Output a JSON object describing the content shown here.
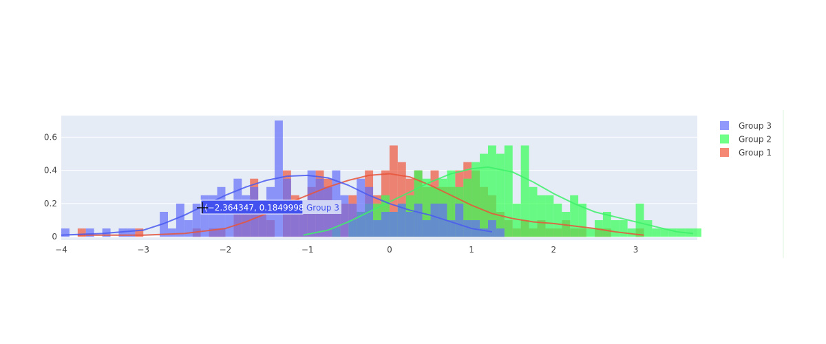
{
  "chart_data": {
    "type": "histogram",
    "subtype": "distplot (histogram + KDE curve)",
    "bin_start": -4.0,
    "bin_width": 0.1,
    "xlim": [
      -4,
      3.75
    ],
    "ylim": [
      -0.02,
      0.73
    ],
    "xticks": [
      -4,
      -3,
      -2,
      -1,
      0,
      1,
      2,
      3
    ],
    "yticks": [
      0,
      0.2,
      0.4,
      0.6
    ],
    "xtick_labels": [
      "−4",
      "−3",
      "−2",
      "−1",
      "0",
      "1",
      "2",
      "3"
    ],
    "ytick_labels": [
      "0",
      "0.2",
      "0.4",
      "0.6"
    ],
    "grid": true,
    "legend_position": "right",
    "plot_bg": "#e5ecf6",
    "series": [
      {
        "name": "Group 1",
        "color": "#ef553b",
        "line_color": "#e8553b",
        "bins_from": -3.8,
        "values": [
          0.05,
          0,
          0,
          0,
          0,
          0,
          0,
          0.05,
          0,
          0,
          0,
          0,
          0,
          0,
          0.05,
          0,
          0.05,
          0.05,
          0,
          0.15,
          0.15,
          0.35,
          0.15,
          0.1,
          0,
          0.4,
          0.25,
          0.15,
          0.3,
          0.4,
          0.35,
          0.2,
          0.2,
          0.25,
          0.15,
          0.4,
          0.25,
          0.4,
          0.55,
          0.45,
          0.35,
          0.4,
          0.3,
          0.4,
          0.3,
          0.3,
          0.4,
          0.45,
          0.4,
          0.3,
          0.25,
          0.15,
          0.1,
          0.05,
          0.1,
          0.05,
          0.1,
          0.05,
          0.05,
          0.1,
          0.05,
          0.05,
          0,
          0.05,
          0.05,
          0,
          0,
          0,
          0.05
        ],
        "kde": {
          "x": [
            -3.8,
            -3,
            -2.5,
            -2,
            -1.75,
            -1.5,
            -1.25,
            -1,
            -0.75,
            -0.5,
            -0.25,
            0,
            0.25,
            0.5,
            0.75,
            1,
            1.25,
            1.5,
            1.75,
            2,
            2.25,
            2.5,
            2.75,
            3,
            3.1
          ],
          "y": [
            0.01,
            0.01,
            0.02,
            0.05,
            0.09,
            0.14,
            0.2,
            0.25,
            0.3,
            0.34,
            0.37,
            0.38,
            0.36,
            0.31,
            0.25,
            0.19,
            0.14,
            0.11,
            0.09,
            0.08,
            0.065,
            0.05,
            0.03,
            0.015,
            0.01
          ]
        }
      },
      {
        "name": "Group 2",
        "color": "#33ff55",
        "line_color": "#3ef06a",
        "bins_from": -0.7,
        "values": [
          0.05,
          0,
          0.1,
          0.15,
          0.2,
          0.2,
          0.25,
          0.15,
          0.2,
          0.25,
          0.4,
          0.35,
          0.3,
          0.35,
          0.4,
          0.3,
          0.35,
          0.45,
          0.5,
          0.55,
          0.5,
          0.55,
          0.2,
          0.55,
          0.3,
          0.25,
          0.25,
          0.2,
          0.15,
          0.25,
          0.2,
          0.05,
          0.1,
          0.15,
          0.1,
          0.1,
          0.05,
          0.2,
          0.1,
          0.05,
          0.05,
          0.05,
          0.05,
          0.05,
          0.05
        ],
        "kde": {
          "x": [
            -1.05,
            -0.75,
            -0.5,
            -0.25,
            0,
            0.25,
            0.5,
            0.75,
            1,
            1.2,
            1.5,
            1.75,
            2,
            2.25,
            2.5,
            2.75,
            3,
            3.25,
            3.5,
            3.7
          ],
          "y": [
            0.01,
            0.04,
            0.09,
            0.15,
            0.21,
            0.27,
            0.33,
            0.38,
            0.41,
            0.42,
            0.39,
            0.33,
            0.26,
            0.2,
            0.15,
            0.12,
            0.09,
            0.06,
            0.03,
            0.02
          ]
        }
      },
      {
        "name": "Group 3",
        "color": "#636efa",
        "line_color": "#4a5af0",
        "bins_from": -4.0,
        "values": [
          0.05,
          0,
          0,
          0.05,
          0,
          0.05,
          0,
          0.05,
          0.05,
          0,
          0,
          0,
          0.15,
          0.05,
          0.2,
          0.1,
          0.2,
          0.25,
          0.25,
          0.3,
          0.2,
          0.35,
          0.25,
          0.3,
          0.2,
          0.3,
          0.7,
          0.35,
          0.2,
          0.15,
          0.4,
          0.35,
          0.3,
          0.4,
          0.25,
          0.2,
          0.35,
          0.3,
          0.1,
          0.15,
          0.15,
          0.2,
          0.15,
          0.2,
          0.1,
          0.2,
          0.2,
          0.1,
          0.2,
          0.1,
          0.1,
          0.05,
          0.1,
          0.05
        ],
        "kde": {
          "x": [
            -4,
            -3.5,
            -3,
            -2.75,
            -2.5,
            -2.25,
            -2,
            -1.75,
            -1.5,
            -1.25,
            -1,
            -0.75,
            -0.5,
            -0.25,
            0,
            0.25,
            0.5,
            0.75,
            1,
            1.25
          ],
          "y": [
            0.01,
            0.02,
            0.04,
            0.08,
            0.13,
            0.19,
            0.25,
            0.3,
            0.34,
            0.365,
            0.37,
            0.355,
            0.31,
            0.25,
            0.2,
            0.16,
            0.13,
            0.09,
            0.05,
            0.03
          ]
        }
      }
    ],
    "legend": [
      "Group 3",
      "Group 2",
      "Group 1"
    ],
    "hover": {
      "text": "(−2.364347, 0.1849998)",
      "series": "Group 3",
      "x": -2.364347,
      "y": 0.1849998
    }
  }
}
